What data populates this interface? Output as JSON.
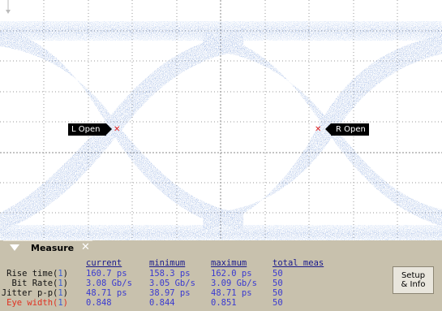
{
  "markers": {
    "left_label": "L Open",
    "right_label": "R Open"
  },
  "measure_panel": {
    "title": "Measure",
    "columns": [
      "current",
      "minimum",
      "maximum",
      "total meas"
    ],
    "rows": [
      {
        "label": "Rise time(",
        "channel": "1",
        "suffix": ")",
        "current": "160.7 ps",
        "minimum": "158.3 ps",
        "maximum": "162.0 ps",
        "total": "50"
      },
      {
        "label": "Bit Rate(",
        "channel": "1",
        "suffix": ")",
        "current": "3.08 Gb/s",
        "minimum": "3.05 Gb/s",
        "maximum": "3.09 Gb/s",
        "total": "50"
      },
      {
        "label": "Jitter p-p(",
        "channel": "1",
        "suffix": ")",
        "current": "48.71 ps",
        "minimum": "38.97 ps",
        "maximum": "48.71 ps",
        "total": "50"
      },
      {
        "label": "Eye width(",
        "channel": "1",
        "suffix": ")",
        "current": "0.848",
        "minimum": "0.844",
        "maximum": "0.851",
        "total": "50"
      }
    ],
    "setup_button": "Setup\n& Info"
  },
  "colors": {
    "trace": "#3c6fc8",
    "grid": "#9a9a9a",
    "panel": "#c8c1ad",
    "warning_label": "#e03020"
  },
  "icons": {
    "collapse": "collapse-triangle-icon",
    "close": "close-icon"
  }
}
